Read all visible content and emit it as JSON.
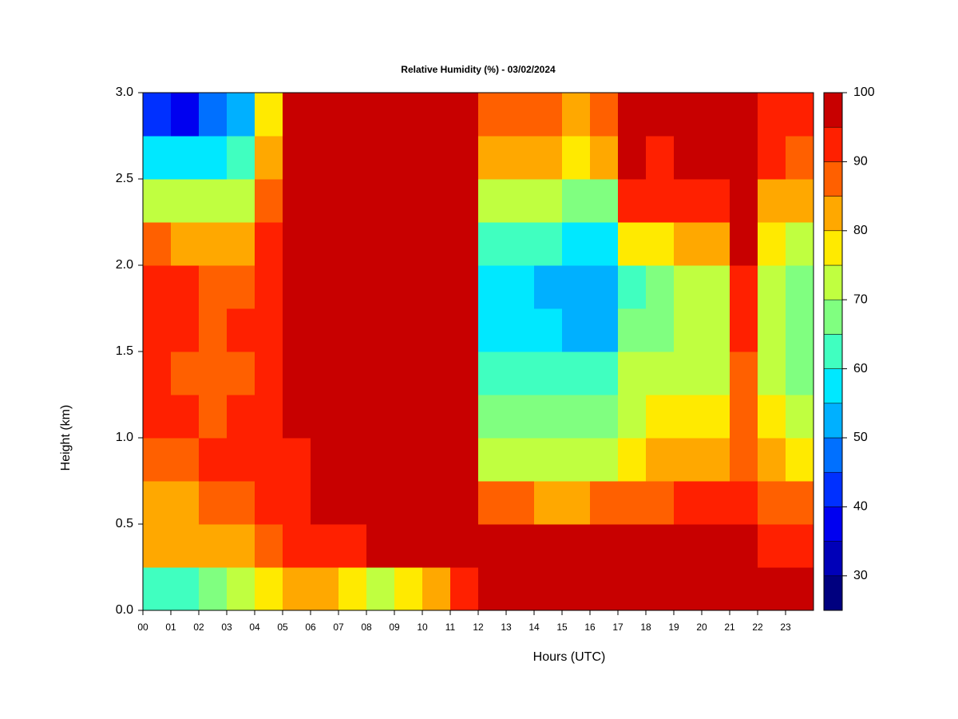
{
  "chart_data": {
    "type": "heatmap",
    "title": "Relative Humidity (%) - 03/02/2024",
    "xlabel": "Hours (UTC)",
    "ylabel": "Height (km)",
    "xlim": [
      0,
      24
    ],
    "ylim": [
      0,
      3
    ],
    "xticks": [
      {
        "value": 0,
        "label": "00"
      },
      {
        "value": 1,
        "label": "01"
      },
      {
        "value": 2,
        "label": "02"
      },
      {
        "value": 3,
        "label": "03"
      },
      {
        "value": 4,
        "label": "04"
      },
      {
        "value": 5,
        "label": "05"
      },
      {
        "value": 6,
        "label": "06"
      },
      {
        "value": 7,
        "label": "07"
      },
      {
        "value": 8,
        "label": "08"
      },
      {
        "value": 9,
        "label": "09"
      },
      {
        "value": 10,
        "label": "10"
      },
      {
        "value": 11,
        "label": "11"
      },
      {
        "value": 12,
        "label": "12"
      },
      {
        "value": 13,
        "label": "13"
      },
      {
        "value": 14,
        "label": "14"
      },
      {
        "value": 15,
        "label": "15"
      },
      {
        "value": 16,
        "label": "16"
      },
      {
        "value": 17,
        "label": "17"
      },
      {
        "value": 18,
        "label": "18"
      },
      {
        "value": 19,
        "label": "19"
      },
      {
        "value": 20,
        "label": "20"
      },
      {
        "value": 21,
        "label": "21"
      },
      {
        "value": 22,
        "label": "22"
      },
      {
        "value": 23,
        "label": "23"
      }
    ],
    "yticks": [
      {
        "value": 0,
        "label": "0.0"
      },
      0.5,
      {
        "value": 1,
        "label": "1.0"
      },
      1.5,
      {
        "value": 2,
        "label": "2.0"
      },
      2.5,
      {
        "value": 3,
        "label": "3.0"
      }
    ],
    "x_bins": [
      0,
      1,
      2,
      3,
      4,
      5,
      6,
      7,
      8,
      9,
      10,
      11,
      12,
      13,
      14,
      15,
      16,
      17,
      18,
      19,
      20,
      21,
      22,
      23,
      24
    ],
    "y_bins": [
      0,
      0.25,
      0.5,
      0.75,
      1,
      1.25,
      1.5,
      1.75,
      2,
      2.25,
      2.5,
      2.75,
      3
    ],
    "z": [
      [
        62,
        80,
        82,
        88,
        90,
        90,
        90,
        92,
        85,
        72,
        55,
        42
      ],
      [
        62,
        80,
        84,
        88,
        90,
        88,
        90,
        90,
        82,
        70,
        55,
        38
      ],
      [
        65,
        82,
        86,
        90,
        88,
        88,
        88,
        88,
        82,
        72,
        58,
        45
      ],
      [
        70,
        84,
        88,
        90,
        90,
        88,
        90,
        88,
        80,
        72,
        60,
        50
      ],
      [
        75,
        88,
        90,
        92,
        92,
        94,
        94,
        92,
        90,
        85,
        80,
        75
      ],
      [
        80,
        92,
        94,
        94,
        95,
        96,
        97,
        97,
        97,
        97,
        97,
        96
      ],
      [
        80,
        94,
        96,
        96,
        97,
        98,
        98,
        98,
        98,
        98,
        98,
        98
      ],
      [
        75,
        94,
        96,
        96,
        97,
        98,
        98,
        98,
        98,
        98,
        98,
        98
      ],
      [
        74,
        96,
        97,
        97,
        98,
        98,
        98,
        98,
        98,
        98,
        98,
        98
      ],
      [
        78,
        97,
        98,
        98,
        98,
        98,
        98,
        98,
        98,
        98,
        98,
        98
      ],
      [
        82,
        97,
        98,
        98,
        98,
        98,
        98,
        98,
        98,
        98,
        98,
        98
      ],
      [
        90,
        97,
        98,
        98,
        98,
        98,
        98,
        98,
        98,
        98,
        98,
        98
      ],
      [
        95,
        97,
        88,
        72,
        68,
        62,
        58,
        55,
        62,
        70,
        80,
        85
      ],
      [
        96,
        97,
        86,
        70,
        66,
        62,
        58,
        56,
        62,
        72,
        82,
        88
      ],
      [
        96,
        96,
        84,
        72,
        68,
        62,
        56,
        54,
        60,
        70,
        80,
        86
      ],
      [
        97,
        96,
        84,
        70,
        66,
        60,
        54,
        52,
        58,
        68,
        78,
        84
      ],
      [
        97,
        96,
        86,
        72,
        66,
        60,
        54,
        52,
        58,
        68,
        80,
        86
      ],
      [
        97,
        96,
        88,
        78,
        74,
        70,
        66,
        64,
        78,
        92,
        95,
        96
      ],
      [
        97,
        96,
        88,
        80,
        76,
        72,
        68,
        66,
        78,
        90,
        94,
        96
      ],
      [
        97,
        96,
        90,
        80,
        76,
        74,
        70,
        70,
        80,
        92,
        95,
        96
      ],
      [
        97,
        96,
        90,
        82,
        78,
        74,
        72,
        72,
        84,
        92,
        95,
        96
      ],
      [
        97,
        95,
        92,
        88,
        85,
        88,
        92,
        94,
        95,
        96,
        97,
        97
      ],
      [
        97,
        94,
        88,
        80,
        76,
        74,
        72,
        70,
        76,
        84,
        90,
        92
      ],
      [
        97,
        93,
        86,
        76,
        72,
        68,
        66,
        66,
        72,
        80,
        86,
        90
      ]
    ],
    "colorbar": {
      "levels": [
        25,
        30,
        35,
        40,
        45,
        50,
        55,
        60,
        65,
        70,
        75,
        80,
        85,
        90,
        95,
        100
      ],
      "colors": [
        "#00007f",
        "#0000b8",
        "#0000f0",
        "#0030ff",
        "#0070ff",
        "#00b0ff",
        "#00e8ff",
        "#40ffc0",
        "#80ff80",
        "#c0ff40",
        "#ffea00",
        "#ffa800",
        "#ff6000",
        "#ff2000",
        "#c80000",
        "#800000"
      ],
      "ticks": [
        30,
        40,
        50,
        60,
        70,
        80,
        90,
        100
      ]
    }
  }
}
